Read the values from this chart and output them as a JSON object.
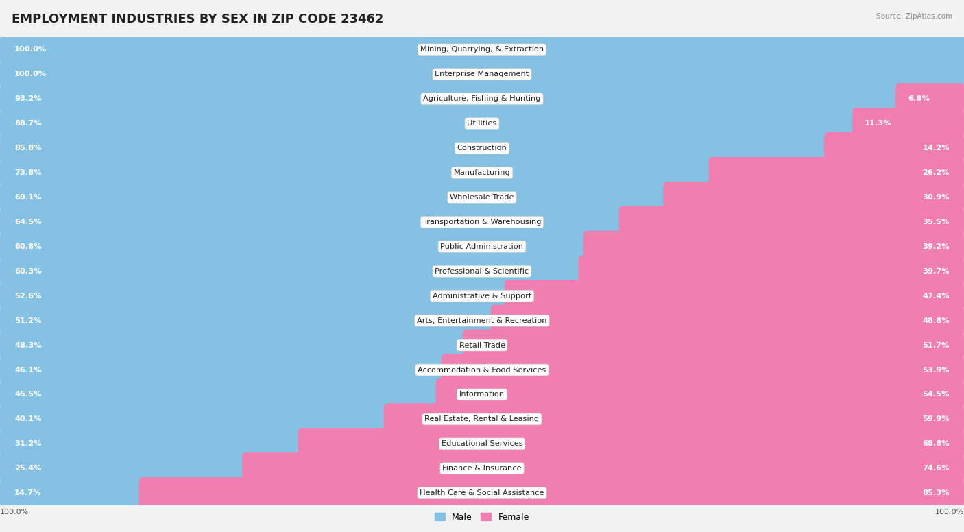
{
  "title": "EMPLOYMENT INDUSTRIES BY SEX IN ZIP CODE 23462",
  "source": "Source: ZipAtlas.com",
  "industries": [
    "Mining, Quarrying, & Extraction",
    "Enterprise Management",
    "Agriculture, Fishing & Hunting",
    "Utilities",
    "Construction",
    "Manufacturing",
    "Wholesale Trade",
    "Transportation & Warehousing",
    "Public Administration",
    "Professional & Scientific",
    "Administrative & Support",
    "Arts, Entertainment & Recreation",
    "Retail Trade",
    "Accommodation & Food Services",
    "Information",
    "Real Estate, Rental & Leasing",
    "Educational Services",
    "Finance & Insurance",
    "Health Care & Social Assistance"
  ],
  "male_pct": [
    100.0,
    100.0,
    93.2,
    88.7,
    85.8,
    73.8,
    69.1,
    64.5,
    60.8,
    60.3,
    52.6,
    51.2,
    48.3,
    46.1,
    45.5,
    40.1,
    31.2,
    25.4,
    14.7
  ],
  "female_pct": [
    0.0,
    0.0,
    6.8,
    11.3,
    14.2,
    26.2,
    30.9,
    35.5,
    39.2,
    39.7,
    47.4,
    48.8,
    51.7,
    53.9,
    54.5,
    59.9,
    68.8,
    74.6,
    85.3
  ],
  "male_color": "#85C1E3",
  "female_color": "#F07EB0",
  "bg_color": "#F2F2F2",
  "row_even_bg": "#FFFFFF",
  "row_odd_bg": "#EBEBEB",
  "title_fontsize": 13,
  "label_fontsize": 8.2,
  "pct_fontsize": 8.2
}
